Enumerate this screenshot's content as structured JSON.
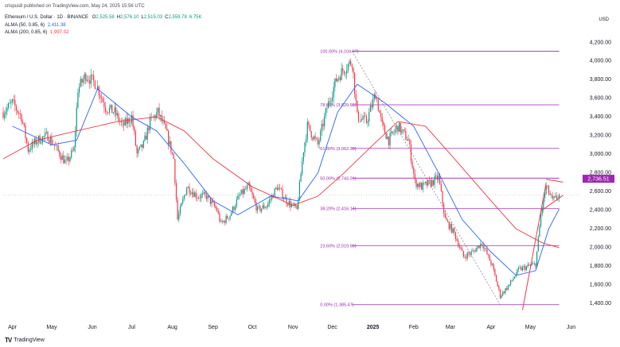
{
  "header": {
    "publisher": "crispus8 published on TradingView.com, May 24, 2025 15:56 UTC",
    "symbol_line": "Ethereum / U.S. Dollar · 1D · BINANCE",
    "ohlc": [
      {
        "label": "O",
        "value": "2,525.58"
      },
      {
        "label": "H",
        "value": "2,576.10"
      },
      {
        "label": "L",
        "value": "2,515.03"
      },
      {
        "label": "C",
        "value": "2,559.78"
      },
      {
        "label": "",
        "value": "6.75K"
      }
    ],
    "alma_fast": {
      "label": "ALMA (50, 0.85, 6)",
      "value": "2,411.38"
    },
    "alma_slow": {
      "label": "ALMA (200, 0.85, 6)",
      "value": "1,997.02"
    },
    "currency": "USD"
  },
  "footer": {
    "logo": "TV",
    "brand": "TradingView"
  },
  "colors": {
    "up": "#089981",
    "down": "#f23645",
    "alma_fast": "#2962ff",
    "alma_slow": "#f23645",
    "fib": "#9c27b0",
    "price_tag": "#9c27b0",
    "grid": "#f0f3fa"
  },
  "chart_data": {
    "type": "candlestick",
    "title": "Ethereum / U.S. Dollar · 1D · BINANCE",
    "ylabel": "USD",
    "ylim": [
      1230,
      4330
    ],
    "y_ticks": [
      "1,400.00",
      "1,600.00",
      "1,800.00",
      "2,000.00",
      "2,200.00",
      "2,400.00",
      "2,600.00",
      "2,800.00",
      "3,000.00",
      "3,200.00",
      "3,400.00",
      "3,600.00",
      "3,800.00",
      "4,000.00",
      "4,200.00"
    ],
    "x_ticks": [
      {
        "label": "Apr",
        "date": "2024-04-01"
      },
      {
        "label": "May",
        "date": "2024-05-01"
      },
      {
        "label": "Jun",
        "date": "2024-06-01"
      },
      {
        "label": "Jul",
        "date": "2024-07-01"
      },
      {
        "label": "Aug",
        "date": "2024-08-01"
      },
      {
        "label": "Sep",
        "date": "2024-09-01"
      },
      {
        "label": "Oct",
        "date": "2024-10-01"
      },
      {
        "label": "Nov",
        "date": "2024-11-01"
      },
      {
        "label": "Dec",
        "date": "2024-12-01"
      },
      {
        "label": "2025",
        "date": "2025-01-01"
      },
      {
        "label": "Feb",
        "date": "2025-02-01"
      },
      {
        "label": "Mar",
        "date": "2025-03-01"
      },
      {
        "label": "Apr",
        "date": "2025-04-01"
      },
      {
        "label": "May",
        "date": "2025-05-01"
      },
      {
        "label": "Jun",
        "date": "2025-06-01"
      }
    ],
    "x_range": [
      "2024-03-25",
      "2025-06-08"
    ],
    "price_path": [
      [
        "2024-03-25",
        3450
      ],
      [
        "2024-04-01",
        3550
      ],
      [
        "2024-04-08",
        3400
      ],
      [
        "2024-04-13",
        3050
      ],
      [
        "2024-04-20",
        3150
      ],
      [
        "2024-04-28",
        3200
      ],
      [
        "2024-05-05",
        3050
      ],
      [
        "2024-05-12",
        2900
      ],
      [
        "2024-05-18",
        3050
      ],
      [
        "2024-05-21",
        3700
      ],
      [
        "2024-05-27",
        3850
      ],
      [
        "2024-06-04",
        3750
      ],
      [
        "2024-06-11",
        3500
      ],
      [
        "2024-06-18",
        3450
      ],
      [
        "2024-06-24",
        3300
      ],
      [
        "2024-07-01",
        3400
      ],
      [
        "2024-07-05",
        3000
      ],
      [
        "2024-07-10",
        3100
      ],
      [
        "2024-07-15",
        3350
      ],
      [
        "2024-07-21",
        3450
      ],
      [
        "2024-07-27",
        3250
      ],
      [
        "2024-08-02",
        2950
      ],
      [
        "2024-08-05",
        2300
      ],
      [
        "2024-08-12",
        2650
      ],
      [
        "2024-08-20",
        2550
      ],
      [
        "2024-08-27",
        2550
      ],
      [
        "2024-09-04",
        2400
      ],
      [
        "2024-09-07",
        2250
      ],
      [
        "2024-09-14",
        2350
      ],
      [
        "2024-09-21",
        2550
      ],
      [
        "2024-09-28",
        2650
      ],
      [
        "2024-10-05",
        2400
      ],
      [
        "2024-10-12",
        2450
      ],
      [
        "2024-10-20",
        2650
      ],
      [
        "2024-10-27",
        2500
      ],
      [
        "2024-11-04",
        2400
      ],
      [
        "2024-11-09",
        3050
      ],
      [
        "2024-11-12",
        3300
      ],
      [
        "2024-11-20",
        3100
      ],
      [
        "2024-11-27",
        3500
      ],
      [
        "2024-12-04",
        3800
      ],
      [
        "2024-12-09",
        3900
      ],
      [
        "2024-12-16",
        4000
      ],
      [
        "2024-12-20",
        3400
      ],
      [
        "2024-12-27",
        3350
      ],
      [
        "2025-01-03",
        3650
      ],
      [
        "2025-01-08",
        3300
      ],
      [
        "2025-01-13",
        3150
      ],
      [
        "2025-01-20",
        3300
      ],
      [
        "2025-01-28",
        3150
      ],
      [
        "2025-02-02",
        2700
      ],
      [
        "2025-02-07",
        2650
      ],
      [
        "2025-02-15",
        2700
      ],
      [
        "2025-02-20",
        2750
      ],
      [
        "2025-02-25",
        2300
      ],
      [
        "2025-03-04",
        2150
      ],
      [
        "2025-03-11",
        1900
      ],
      [
        "2025-03-18",
        1950
      ],
      [
        "2025-03-25",
        2050
      ],
      [
        "2025-04-02",
        1800
      ],
      [
        "2025-04-08",
        1480
      ],
      [
        "2025-04-15",
        1600
      ],
      [
        "2025-04-22",
        1760
      ],
      [
        "2025-04-30",
        1800
      ],
      [
        "2025-05-05",
        1820
      ],
      [
        "2025-05-09",
        2350
      ],
      [
        "2025-05-13",
        2650
      ],
      [
        "2025-05-18",
        2500
      ],
      [
        "2025-05-23",
        2560
      ]
    ],
    "last_price": 2559.78,
    "alma_fast_path": [
      [
        "2024-04-01",
        3300
      ],
      [
        "2024-05-01",
        3100
      ],
      [
        "2024-05-20",
        3150
      ],
      [
        "2024-06-05",
        3700
      ],
      [
        "2024-07-01",
        3400
      ],
      [
        "2024-07-20",
        3250
      ],
      [
        "2024-08-10",
        2900
      ],
      [
        "2024-09-01",
        2500
      ],
      [
        "2024-09-20",
        2350
      ],
      [
        "2024-10-15",
        2550
      ],
      [
        "2024-11-05",
        2500
      ],
      [
        "2024-11-20",
        2800
      ],
      [
        "2024-12-05",
        3450
      ],
      [
        "2024-12-20",
        3750
      ],
      [
        "2025-01-10",
        3550
      ],
      [
        "2025-02-01",
        3300
      ],
      [
        "2025-02-20",
        2800
      ],
      [
        "2025-03-10",
        2300
      ],
      [
        "2025-04-01",
        1950
      ],
      [
        "2025-04-20",
        1700
      ],
      [
        "2025-05-05",
        1750
      ],
      [
        "2025-05-15",
        2200
      ],
      [
        "2025-05-23",
        2411.38
      ]
    ],
    "alma_slow_path": [
      [
        "2024-03-25",
        2950
      ],
      [
        "2024-04-20",
        3150
      ],
      [
        "2024-05-20",
        3250
      ],
      [
        "2024-06-20",
        3350
      ],
      [
        "2024-07-20",
        3400
      ],
      [
        "2024-08-10",
        3250
      ],
      [
        "2024-09-01",
        2950
      ],
      [
        "2024-10-01",
        2650
      ],
      [
        "2024-11-01",
        2450
      ],
      [
        "2024-11-20",
        2550
      ],
      [
        "2024-12-10",
        2800
      ],
      [
        "2025-01-01",
        3100
      ],
      [
        "2025-01-20",
        3350
      ],
      [
        "2025-02-10",
        3300
      ],
      [
        "2025-03-01",
        3000
      ],
      [
        "2025-04-01",
        2500
      ],
      [
        "2025-04-20",
        2200
      ],
      [
        "2025-05-10",
        2050
      ],
      [
        "2025-05-23",
        1997.02
      ]
    ],
    "fib_levels": [
      {
        "label": "100.00% (4,104.97)",
        "price": 4104.97
      },
      {
        "label": "78.60% (3,529.65)",
        "price": 3529.65
      },
      {
        "label": "61.80% (3,062.30)",
        "price": 3062.3
      },
      {
        "label": "50.00% (2,743.21)",
        "price": 2743.21
      },
      {
        "label": "38.20% (2,416.14)",
        "price": 2416.14
      },
      {
        "label": "23.60% (2,019.60)",
        "price": 2019.6
      },
      {
        "label": "0.00% (1,385.47)",
        "price": 1385.47
      }
    ],
    "fib_range": [
      "2024-12-16",
      "2025-05-23"
    ],
    "fib_diagonal": [
      [
        "2024-12-16",
        4104.97
      ],
      [
        "2025-04-08",
        1385.47
      ]
    ],
    "trendlines": [
      {
        "name": "upper",
        "from": [
          "2025-05-13",
          2730
        ],
        "to": [
          "2025-05-26",
          2700
        ]
      },
      {
        "name": "lower",
        "from": [
          "2025-05-10",
          2400
        ],
        "to": [
          "2025-05-26",
          2560
        ]
      },
      {
        "name": "rise",
        "from": [
          "2025-04-25",
          1330
        ],
        "to": [
          "2025-05-13",
          2690
        ]
      }
    ],
    "price_label": "2,736.51",
    "price_label_value": 2736.51,
    "grid": false,
    "legend": "top-left"
  }
}
